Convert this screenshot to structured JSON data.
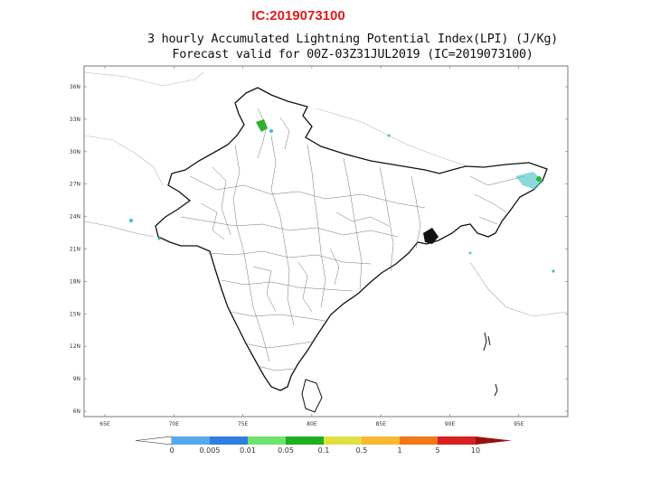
{
  "header": {
    "ic_label": "IC:2019073100"
  },
  "map": {
    "title_line1": "3 hourly Accumulated Lightning Potential Index(LPI) (J/Kg)",
    "title_line2": "Forecast valid for 00Z-03Z31JUL2019 (IC=2019073100)",
    "lat_ticks": [
      "36N",
      "33N",
      "30N",
      "27N",
      "24N",
      "21N",
      "18N",
      "15N",
      "12N",
      "9N",
      "6N"
    ],
    "lon_ticks": [
      "65E",
      "70E",
      "75E",
      "80E",
      "85E",
      "90E",
      "95E"
    ],
    "colors": {
      "coastline": "#111111",
      "districts": "#555555",
      "lpi_light": "#40c0c0",
      "lpi_green": "#30b030"
    }
  },
  "colorbar": {
    "colors": [
      "#ffffff",
      "#55aaee",
      "#2e7fe0",
      "#6ee36e",
      "#1fb01f",
      "#e0e040",
      "#f8b830",
      "#f07818",
      "#d82020",
      "#9a1010"
    ],
    "labels": [
      "0",
      "0.005",
      "0.01",
      "0.05",
      "0.1",
      "0.5",
      "1",
      "5",
      "10"
    ]
  }
}
